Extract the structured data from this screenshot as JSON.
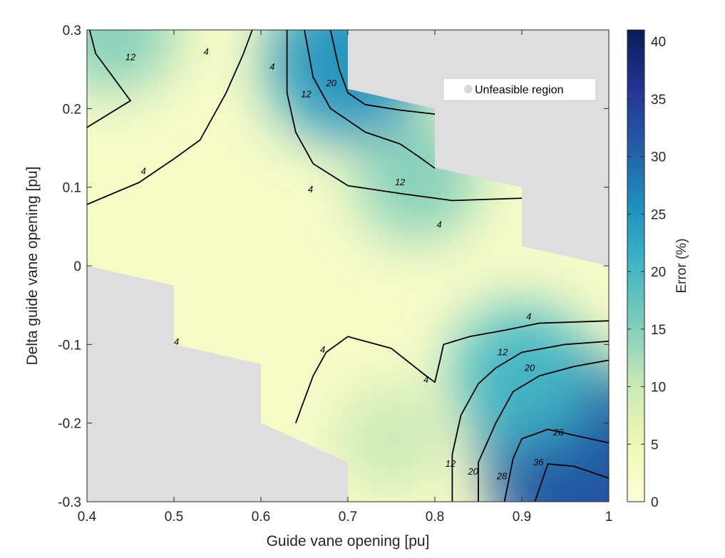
{
  "chart_data": {
    "type": "heatmap",
    "subtype": "filled-contour",
    "title": "",
    "xlabel": "Guide vane opening [pu]",
    "ylabel": "Delta guide vane opening [pu]",
    "xlim": [
      0.4,
      1.0
    ],
    "ylim": [
      -0.3,
      0.3
    ],
    "x_ticks": [
      0.4,
      0.5,
      0.6,
      0.7,
      0.8,
      0.9,
      1.0
    ],
    "x_tick_labels": [
      "0.4",
      "0.5",
      "0.6",
      "0.7",
      "0.8",
      "0.9",
      "1"
    ],
    "y_ticks": [
      -0.3,
      -0.2,
      -0.1,
      0,
      0.1,
      0.2,
      0.3
    ],
    "y_tick_labels": [
      "-0.3",
      "-0.2",
      "-0.1",
      "0",
      "0.1",
      "0.2",
      "0.3"
    ],
    "colorbar": {
      "label": "Error (%)",
      "range": [
        0,
        41
      ],
      "ticks": [
        0,
        5,
        10,
        15,
        20,
        25,
        30,
        35,
        40
      ],
      "tick_labels": [
        "0",
        "5",
        "10",
        "15",
        "20",
        "25",
        "30",
        "35",
        "40"
      ],
      "colormap": "YlGnBu",
      "colors": [
        "#ffffd9",
        "#edf8b1",
        "#c7e9b4",
        "#7fcdbb",
        "#41b6c4",
        "#1d91c0",
        "#225ea8",
        "#253494",
        "#081d58"
      ]
    },
    "contour_levels": [
      4,
      12,
      20,
      28,
      36
    ],
    "contour_labels": [
      {
        "text": "12",
        "x": 0.45,
        "y": 0.265
      },
      {
        "text": "4",
        "x": 0.537,
        "y": 0.272
      },
      {
        "text": "4",
        "x": 0.465,
        "y": 0.12
      },
      {
        "text": "4",
        "x": 0.613,
        "y": 0.253
      },
      {
        "text": "12",
        "x": 0.652,
        "y": 0.218
      },
      {
        "text": "20",
        "x": 0.681,
        "y": 0.232
      },
      {
        "text": "12",
        "x": 0.76,
        "y": 0.106
      },
      {
        "text": "4",
        "x": 0.657,
        "y": 0.097
      },
      {
        "text": "4",
        "x": 0.805,
        "y": 0.052
      },
      {
        "text": "4",
        "x": 0.503,
        "y": -0.097
      },
      {
        "text": "4",
        "x": 0.671,
        "y": -0.107
      },
      {
        "text": "4",
        "x": 0.79,
        "y": -0.145
      },
      {
        "text": "4",
        "x": 0.908,
        "y": -0.065
      },
      {
        "text": "12",
        "x": 0.878,
        "y": -0.11
      },
      {
        "text": "20",
        "x": 0.909,
        "y": -0.13
      },
      {
        "text": "28",
        "x": 0.942,
        "y": -0.212
      },
      {
        "text": "36",
        "x": 0.919,
        "y": -0.25
      },
      {
        "text": "12",
        "x": 0.818,
        "y": -0.252
      },
      {
        "text": "20",
        "x": 0.844,
        "y": -0.262
      },
      {
        "text": "28",
        "x": 0.877,
        "y": -0.268
      }
    ],
    "contour_lines": [
      {
        "level": 4,
        "points": [
          [
            0.4,
            0.078
          ],
          [
            0.46,
            0.106
          ],
          [
            0.5,
            0.136
          ],
          [
            0.53,
            0.16
          ],
          [
            0.56,
            0.22
          ],
          [
            0.58,
            0.27
          ],
          [
            0.59,
            0.3
          ]
        ]
      },
      {
        "level": 12,
        "points": [
          [
            0.403,
            0.3
          ],
          [
            0.41,
            0.27
          ],
          [
            0.43,
            0.24
          ],
          [
            0.45,
            0.21
          ],
          [
            0.4,
            0.176
          ]
        ]
      },
      {
        "level": 4,
        "points": [
          [
            0.63,
            0.3
          ],
          [
            0.63,
            0.22
          ],
          [
            0.64,
            0.17
          ],
          [
            0.66,
            0.13
          ],
          [
            0.7,
            0.102
          ],
          [
            0.76,
            0.092
          ],
          [
            0.82,
            0.083
          ],
          [
            0.9,
            0.086
          ]
        ]
      },
      {
        "level": 12,
        "points": [
          [
            0.65,
            0.3
          ],
          [
            0.66,
            0.24
          ],
          [
            0.68,
            0.2
          ],
          [
            0.72,
            0.17
          ],
          [
            0.76,
            0.155
          ],
          [
            0.78,
            0.14
          ],
          [
            0.8,
            0.124
          ]
        ]
      },
      {
        "level": 20,
        "points": [
          [
            0.68,
            0.3
          ],
          [
            0.69,
            0.25
          ],
          [
            0.7,
            0.22
          ],
          [
            0.72,
            0.205
          ],
          [
            0.76,
            0.198
          ],
          [
            0.8,
            0.193
          ]
        ]
      },
      {
        "level": 4,
        "points": [
          [
            0.64,
            -0.2
          ],
          [
            0.65,
            -0.17
          ],
          [
            0.66,
            -0.14
          ],
          [
            0.675,
            -0.11
          ],
          [
            0.7,
            -0.09
          ],
          [
            0.75,
            -0.105
          ],
          [
            0.79,
            -0.14
          ],
          [
            0.8,
            -0.148
          ],
          [
            0.806,
            -0.12
          ],
          [
            0.81,
            -0.1
          ],
          [
            0.84,
            -0.09
          ],
          [
            0.88,
            -0.082
          ],
          [
            0.92,
            -0.073
          ],
          [
            1.0,
            -0.07
          ]
        ]
      },
      {
        "level": 12,
        "points": [
          [
            0.82,
            -0.3
          ],
          [
            0.82,
            -0.24
          ],
          [
            0.83,
            -0.19
          ],
          [
            0.85,
            -0.15
          ],
          [
            0.87,
            -0.13
          ],
          [
            0.9,
            -0.11
          ],
          [
            0.95,
            -0.1
          ],
          [
            1.0,
            -0.096
          ]
        ]
      },
      {
        "level": 20,
        "points": [
          [
            0.85,
            -0.3
          ],
          [
            0.85,
            -0.25
          ],
          [
            0.87,
            -0.2
          ],
          [
            0.89,
            -0.16
          ],
          [
            0.92,
            -0.14
          ],
          [
            0.96,
            -0.128
          ],
          [
            1.0,
            -0.12
          ]
        ]
      },
      {
        "level": 28,
        "points": [
          [
            0.88,
            -0.3
          ],
          [
            0.89,
            -0.245
          ],
          [
            0.9,
            -0.22
          ],
          [
            0.93,
            -0.208
          ],
          [
            0.97,
            -0.218
          ],
          [
            1.0,
            -0.225
          ]
        ]
      },
      {
        "level": 36,
        "points": [
          [
            0.915,
            -0.3
          ],
          [
            0.93,
            -0.252
          ],
          [
            0.96,
            -0.255
          ],
          [
            1.0,
            -0.27
          ]
        ]
      }
    ],
    "feasible_region": [
      [
        0.4,
        0.3
      ],
      [
        0.7,
        0.3
      ],
      [
        0.7,
        0.225
      ],
      [
        0.8,
        0.2
      ],
      [
        0.8,
        0.125
      ],
      [
        0.9,
        0.1
      ],
      [
        0.9,
        0.025
      ],
      [
        1.0,
        0.0
      ],
      [
        1.0,
        -0.3
      ],
      [
        0.7,
        -0.3
      ],
      [
        0.7,
        -0.25
      ],
      [
        0.6,
        -0.2
      ],
      [
        0.6,
        -0.125
      ],
      [
        0.5,
        -0.1
      ],
      [
        0.5,
        -0.025
      ],
      [
        0.4,
        0.0
      ]
    ],
    "high_error_zones": [
      {
        "x": 0.43,
        "y": 0.3,
        "value": 14
      },
      {
        "x": 0.7,
        "y": 0.26,
        "value": 26
      },
      {
        "x": 0.78,
        "y": 0.11,
        "value": 13
      },
      {
        "x": 0.98,
        "y": -0.27,
        "value": 38
      },
      {
        "x": 0.95,
        "y": -0.22,
        "value": 31
      },
      {
        "x": 0.9,
        "y": -0.14,
        "value": 20
      },
      {
        "x": 0.75,
        "y": -0.22,
        "value": 8
      }
    ],
    "legend": {
      "entries": [
        "Unfeasible region"
      ],
      "placement": "top-right",
      "marker_color": "#d9d9d9"
    },
    "unfeasible_color": "#dedede"
  }
}
